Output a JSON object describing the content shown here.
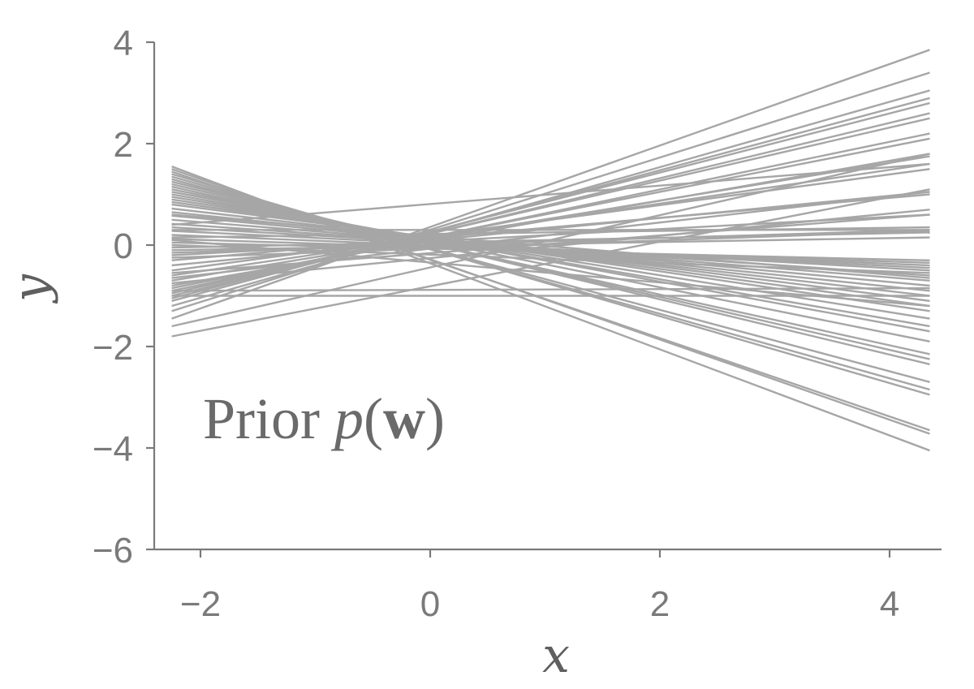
{
  "chart_data": {
    "type": "line",
    "xlabel": "x",
    "ylabel": "y",
    "xlim": [
      -2.2,
      4.35
    ],
    "ylim": [
      -6,
      4
    ],
    "xticks": [
      -2,
      0,
      2,
      4
    ],
    "yticks": [
      4,
      2,
      0,
      -2,
      -4,
      -6
    ],
    "xtick_labels": [
      "−2",
      "0",
      "2",
      "4"
    ],
    "ytick_labels": [
      "4",
      "2",
      "0",
      "−2",
      "−4",
      "−6"
    ],
    "grid": false,
    "line_color": "#a6a6a6",
    "x_range_of_lines": [
      -2.25,
      4.35
    ],
    "annotation": {
      "prefix": "Prior ",
      "var": "p",
      "open": "(",
      "bold": "w",
      "close": ")"
    },
    "series": [
      {
        "values": [
          1.55,
          -4.05
        ]
      },
      {
        "values": [
          1.5,
          -3.72
        ]
      },
      {
        "values": [
          1.45,
          -3.65
        ]
      },
      {
        "values": [
          1.4,
          -2.95
        ]
      },
      {
        "values": [
          1.35,
          -2.85
        ]
      },
      {
        "values": [
          1.3,
          -2.7
        ]
      },
      {
        "values": [
          1.25,
          -2.35
        ]
      },
      {
        "values": [
          1.2,
          -2.25
        ]
      },
      {
        "values": [
          1.15,
          -2.15
        ]
      },
      {
        "values": [
          1.1,
          -1.9
        ]
      },
      {
        "values": [
          1.05,
          -1.7
        ]
      },
      {
        "values": [
          1.0,
          -1.6
        ]
      },
      {
        "values": [
          0.95,
          -1.45
        ]
      },
      {
        "values": [
          0.9,
          -1.3
        ]
      },
      {
        "values": [
          0.85,
          -1.2
        ]
      },
      {
        "values": [
          0.8,
          -1.1
        ]
      },
      {
        "values": [
          0.72,
          -1.0
        ]
      },
      {
        "values": [
          0.65,
          -0.9
        ]
      },
      {
        "values": [
          0.58,
          -0.8
        ]
      },
      {
        "values": [
          0.5,
          -0.7
        ]
      },
      {
        "values": [
          0.42,
          -0.6
        ]
      },
      {
        "values": [
          0.35,
          -0.5
        ]
      },
      {
        "values": [
          0.28,
          -0.45
        ]
      },
      {
        "values": [
          0.2,
          -0.4
        ]
      },
      {
        "values": [
          0.12,
          -0.35
        ]
      },
      {
        "values": [
          0.05,
          -0.3
        ]
      },
      {
        "values": [
          0.0,
          -0.55
        ]
      },
      {
        "values": [
          0.1,
          -1.2
        ]
      },
      {
        "values": [
          -0.1,
          0.15
        ]
      },
      {
        "values": [
          -0.15,
          0.3
        ]
      },
      {
        "values": [
          -0.2,
          0.6
        ]
      },
      {
        "values": [
          -0.25,
          0.28
        ]
      },
      {
        "values": [
          0.15,
          0.35
        ]
      },
      {
        "values": [
          -0.3,
          1.0
        ]
      },
      {
        "values": [
          -0.4,
          1.05
        ]
      },
      {
        "values": [
          -0.5,
          1.5
        ]
      },
      {
        "values": [
          -0.6,
          1.6
        ]
      },
      {
        "values": [
          -0.7,
          1.75
        ]
      },
      {
        "values": [
          -0.8,
          1.8
        ]
      },
      {
        "values": [
          -0.85,
          2.1
        ]
      },
      {
        "values": [
          -0.9,
          2.2
        ]
      },
      {
        "values": [
          -0.95,
          2.5
        ]
      },
      {
        "values": [
          -1.0,
          2.6
        ]
      },
      {
        "values": [
          -1.05,
          2.8
        ]
      },
      {
        "values": [
          -1.1,
          2.9
        ]
      },
      {
        "values": [
          -1.2,
          3.05
        ]
      },
      {
        "values": [
          -1.3,
          3.4
        ]
      },
      {
        "values": [
          -1.45,
          3.85
        ]
      },
      {
        "values": [
          -1.6,
          1.8
        ]
      },
      {
        "values": [
          -1.8,
          1.1
        ]
      },
      {
        "values": [
          -0.55,
          0.6
        ]
      },
      {
        "values": [
          -0.75,
          0.7
        ]
      },
      {
        "values": [
          -0.9,
          -0.85
        ]
      },
      {
        "values": [
          -1.0,
          -1.0
        ]
      },
      {
        "values": [
          0.3,
          0.3
        ]
      },
      {
        "values": [
          -0.05,
          0.25
        ]
      },
      {
        "values": [
          0.6,
          -0.65
        ]
      },
      {
        "values": [
          -0.65,
          1.05
        ]
      },
      {
        "values": [
          0.4,
          1.6
        ]
      }
    ]
  }
}
